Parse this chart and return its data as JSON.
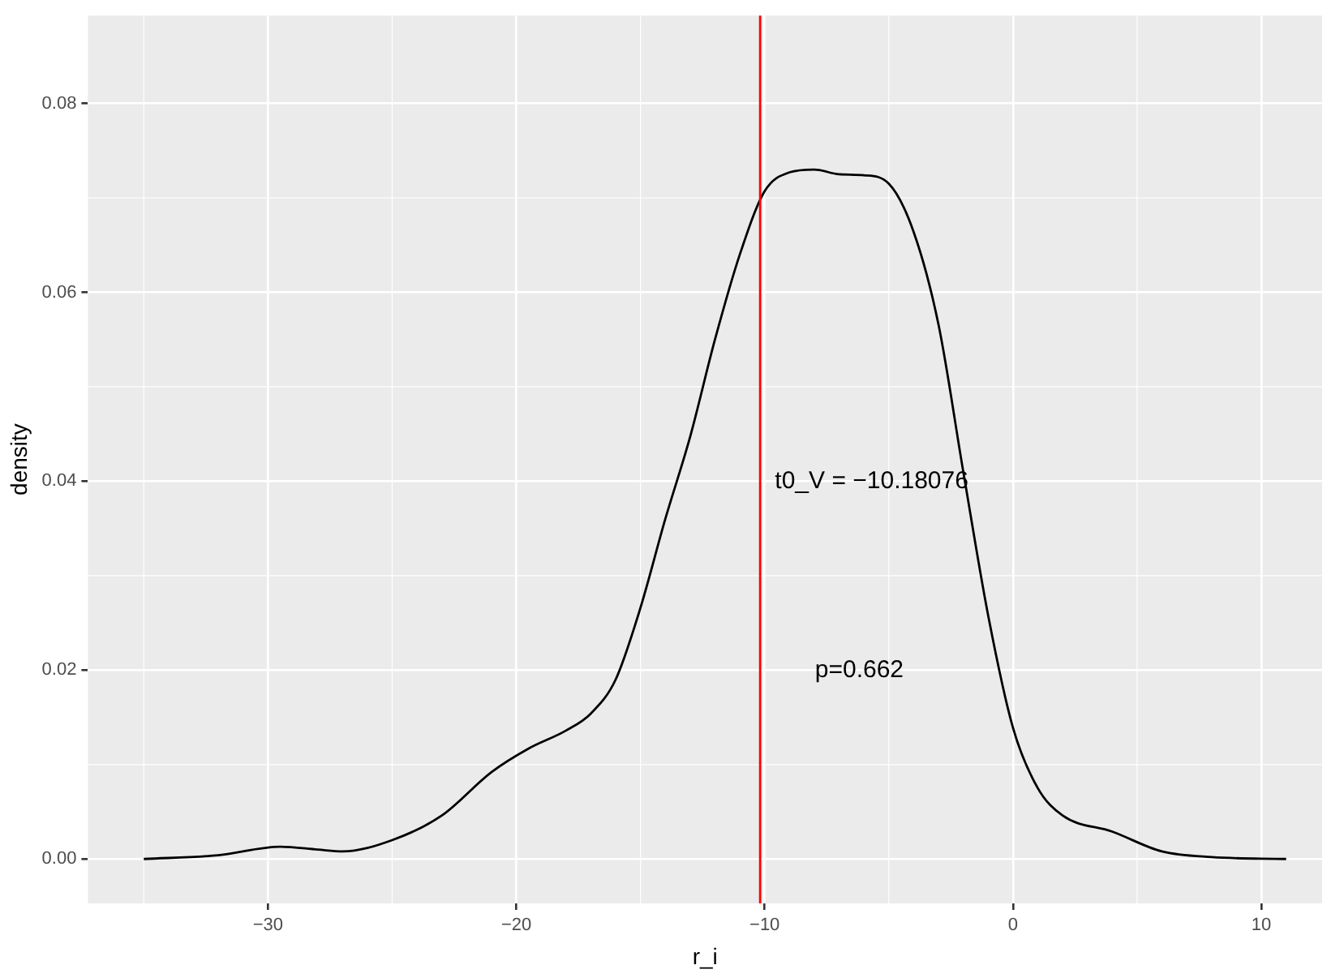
{
  "chart_data": {
    "type": "line",
    "xlabel": "r_i",
    "ylabel": "density",
    "xlim": [
      -37.25,
      12.45
    ],
    "ylim": [
      -0.0047,
      0.0893
    ],
    "xticks": [
      {
        "value": -30,
        "label": "−30"
      },
      {
        "value": -20,
        "label": "−20"
      },
      {
        "value": -10,
        "label": "−10"
      },
      0,
      10
    ],
    "yticks": [
      {
        "value": 0,
        "label": "0.00"
      },
      {
        "value": 0.02,
        "label": "0.02"
      },
      {
        "value": 0.04,
        "label": "0.04"
      },
      {
        "value": 0.06,
        "label": "0.06"
      },
      {
        "value": 0.08,
        "label": "0.08"
      }
    ],
    "grid": true,
    "legend": false,
    "marker": "none",
    "line_style": "solid",
    "series": [
      {
        "color": "#000000",
        "x": [
          -35,
          -32,
          -29.5,
          -28,
          -27,
          -25,
          -23,
          -21,
          -19.5,
          -18,
          -17,
          -16,
          -15,
          -14,
          -13,
          -12,
          -11,
          -10,
          -9,
          -8,
          -7,
          -6,
          -5,
          -4,
          -3,
          -2,
          -1,
          0,
          1,
          2,
          4,
          6,
          8,
          11
        ],
        "values": [
          0,
          0.0004,
          0.0013,
          0.001,
          0.0008,
          0.002,
          0.0046,
          0.0092,
          0.0117,
          0.0136,
          0.0154,
          0.019,
          0.0266,
          0.036,
          0.0447,
          0.055,
          0.064,
          0.0707,
          0.0727,
          0.073,
          0.0725,
          0.0724,
          0.0715,
          0.0664,
          0.0566,
          0.041,
          0.0258,
          0.0139,
          0.0075,
          0.0046,
          0.0029,
          0.0008,
          0.0002,
          0
        ]
      }
    ],
    "ref_lines": [
      {
        "axis": "x",
        "value": -10.18076,
        "color": "#ff0000"
      }
    ],
    "annotations": [
      "t0_V = −10.18076",
      "p=0.662"
    ]
  }
}
